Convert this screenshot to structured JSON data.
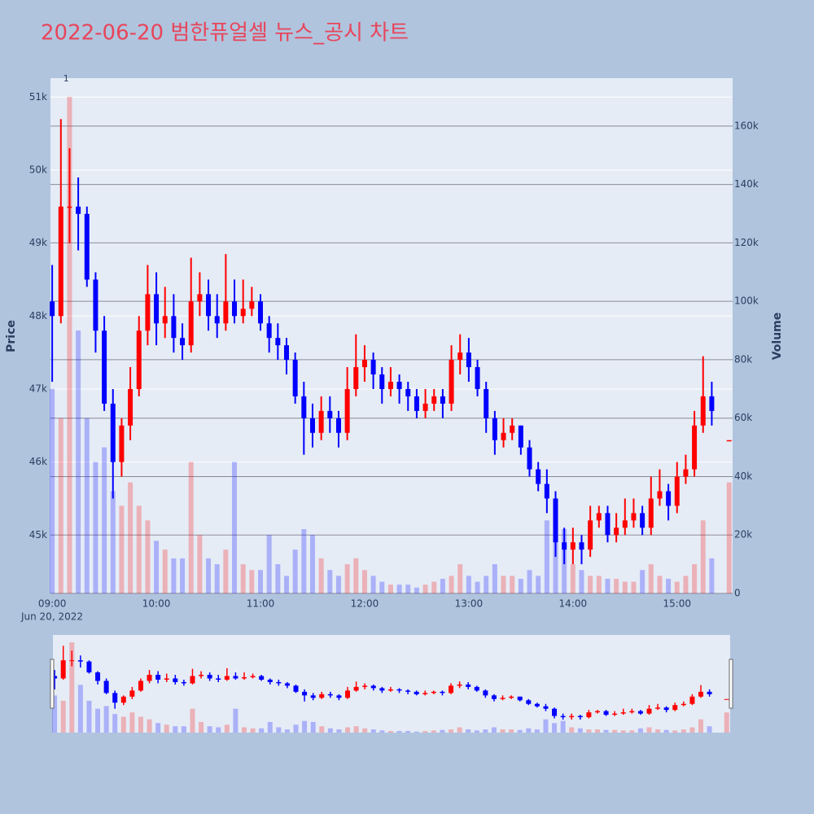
{
  "chart_data": {
    "type": "candlestick",
    "title": "2022-06-20 범한퓨얼셀 뉴스_공시 차트",
    "y_axis_label": "Price",
    "y2_axis_label": "Volume",
    "x_date_label": "Jun 20, 2022",
    "annotations": [
      {
        "text": "1",
        "x": "09:08"
      }
    ],
    "increasing_color": "#ff0000",
    "decreasing_color": "#0000ff",
    "xlim": [
      "08:59",
      "15:32"
    ],
    "xticks": [
      "09:00",
      "10:00",
      "11:00",
      "12:00",
      "13:00",
      "14:00",
      "15:00"
    ],
    "ylim": [
      44200,
      51260
    ],
    "yticks": [
      {
        "value": 45000,
        "label": "45k"
      },
      {
        "value": 46000,
        "label": "46k"
      },
      {
        "value": 47000,
        "label": "47k"
      },
      {
        "value": 48000,
        "label": "48k"
      },
      {
        "value": 49000,
        "label": "49k"
      },
      {
        "value": 50000,
        "label": "50k"
      },
      {
        "value": 51000,
        "label": "51k"
      }
    ],
    "y2lim": [
      0,
      176400
    ],
    "y2ticks": [
      0,
      {
        "value": 20000,
        "label": "20k"
      },
      {
        "value": 40000,
        "label": "40k"
      },
      {
        "value": 60000,
        "label": "60k"
      },
      {
        "value": 80000,
        "label": "80k"
      },
      {
        "value": 100000,
        "label": "100k"
      },
      {
        "value": 120000,
        "label": "120k"
      },
      {
        "value": 140000,
        "label": "140k"
      },
      {
        "value": 160000,
        "label": "160k"
      }
    ],
    "grid": true,
    "x": [
      "09:00",
      "09:05",
      "09:10",
      "09:15",
      "09:20",
      "09:25",
      "09:30",
      "09:35",
      "09:40",
      "09:45",
      "09:50",
      "09:55",
      "10:00",
      "10:05",
      "10:10",
      "10:15",
      "10:20",
      "10:25",
      "10:30",
      "10:35",
      "10:40",
      "10:45",
      "10:50",
      "10:55",
      "11:00",
      "11:05",
      "11:10",
      "11:15",
      "11:20",
      "11:25",
      "11:30",
      "11:35",
      "11:40",
      "11:45",
      "11:50",
      "11:55",
      "12:00",
      "12:05",
      "12:10",
      "12:15",
      "12:20",
      "12:25",
      "12:30",
      "12:35",
      "12:40",
      "12:45",
      "12:50",
      "12:55",
      "13:00",
      "13:05",
      "13:10",
      "13:15",
      "13:20",
      "13:25",
      "13:30",
      "13:35",
      "13:40",
      "13:45",
      "13:50",
      "13:55",
      "14:00",
      "14:05",
      "14:10",
      "14:15",
      "14:20",
      "14:25",
      "14:30",
      "14:35",
      "14:40",
      "14:45",
      "14:50",
      "14:55",
      "15:00",
      "15:05",
      "15:10",
      "15:15",
      "15:20",
      "15:30"
    ],
    "open": [
      48200,
      48000,
      49500,
      49500,
      49400,
      48500,
      47800,
      46800,
      46000,
      46500,
      47000,
      47800,
      48300,
      47900,
      48000,
      47700,
      47600,
      48200,
      48300,
      48000,
      47900,
      48200,
      48000,
      48100,
      48200,
      47900,
      47700,
      47600,
      47400,
      46900,
      46600,
      46400,
      46700,
      46600,
      46400,
      47000,
      47300,
      47400,
      47200,
      47000,
      47100,
      47000,
      46900,
      46700,
      46800,
      46900,
      46800,
      47400,
      47500,
      47300,
      47000,
      46600,
      46300,
      46400,
      46500,
      46200,
      45900,
      45700,
      45500,
      44900,
      44800,
      44900,
      44800,
      45200,
      45300,
      45000,
      45100,
      45200,
      45300,
      45100,
      45500,
      45600,
      45400,
      45800,
      45900,
      46500,
      46900,
      46300
    ],
    "high": [
      48700,
      50700,
      50300,
      49900,
      49500,
      48600,
      48000,
      47000,
      46600,
      47300,
      48000,
      48700,
      48600,
      48400,
      48300,
      47900,
      48800,
      48600,
      48500,
      48300,
      48850,
      48500,
      48500,
      48400,
      48300,
      48000,
      47900,
      47700,
      47500,
      47100,
      46800,
      46900,
      46900,
      46700,
      47300,
      47750,
      47600,
      47500,
      47300,
      47300,
      47200,
      47100,
      47000,
      47000,
      47000,
      47000,
      47600,
      47750,
      47700,
      47400,
      47100,
      46700,
      46600,
      46600,
      46500,
      46300,
      46000,
      45900,
      45600,
      45100,
      45100,
      45000,
      45400,
      45400,
      45400,
      45300,
      45500,
      45500,
      45400,
      45800,
      45900,
      45700,
      46000,
      46100,
      46700,
      47450,
      47100,
      46300
    ],
    "low": [
      47100,
      47900,
      49000,
      48900,
      48400,
      47500,
      46700,
      45500,
      45800,
      46300,
      46900,
      47600,
      47600,
      47700,
      47500,
      47400,
      47500,
      48000,
      47800,
      47700,
      47800,
      47900,
      47900,
      48000,
      47800,
      47500,
      47400,
      47200,
      46800,
      46100,
      46200,
      46300,
      46400,
      46200,
      46300,
      46900,
      47100,
      47000,
      46800,
      46900,
      46800,
      46700,
      46600,
      46600,
      46700,
      46600,
      46700,
      47200,
      47100,
      46900,
      46400,
      46100,
      46200,
      46300,
      46100,
      45800,
      45600,
      45300,
      44700,
      44600,
      44600,
      44600,
      44700,
      45100,
      44900,
      44900,
      45000,
      45100,
      45000,
      45000,
      45400,
      45200,
      45300,
      45700,
      45800,
      46400,
      46500,
      46300
    ],
    "close": [
      48000,
      49500,
      49500,
      49400,
      48500,
      47800,
      46800,
      46000,
      46500,
      47000,
      47800,
      48300,
      47900,
      48000,
      47700,
      47600,
      48200,
      48300,
      48000,
      47900,
      48200,
      48000,
      48100,
      48200,
      47900,
      47700,
      47600,
      47400,
      46900,
      46600,
      46400,
      46700,
      46600,
      46400,
      47000,
      47300,
      47400,
      47200,
      47000,
      47100,
      47000,
      46900,
      46700,
      46800,
      46900,
      46800,
      47400,
      47500,
      47300,
      47000,
      46600,
      46300,
      46400,
      46500,
      46200,
      45900,
      45700,
      45500,
      44900,
      44800,
      44900,
      44800,
      45200,
      45300,
      45000,
      45100,
      45200,
      45300,
      45100,
      45500,
      45600,
      45400,
      45800,
      45900,
      46500,
      46900,
      46700,
      46300
    ],
    "volume": [
      70000,
      60000,
      170000,
      90000,
      60000,
      45000,
      50000,
      35000,
      30000,
      38000,
      30000,
      25000,
      18000,
      15000,
      12000,
      12000,
      45000,
      20000,
      12000,
      10000,
      15000,
      45000,
      10000,
      8000,
      8000,
      20000,
      10000,
      6000,
      15000,
      22000,
      20000,
      12000,
      8000,
      6000,
      10000,
      12000,
      8000,
      6000,
      4000,
      3000,
      3000,
      3000,
      2000,
      3000,
      4000,
      5000,
      6000,
      10000,
      6000,
      4000,
      6000,
      10000,
      6000,
      6000,
      5000,
      8000,
      6000,
      25000,
      18000,
      22000,
      10000,
      8000,
      6000,
      6000,
      5000,
      5000,
      4000,
      4000,
      8000,
      10000,
      6000,
      5000,
      4000,
      6000,
      10000,
      25000,
      12000,
      38000
    ]
  }
}
